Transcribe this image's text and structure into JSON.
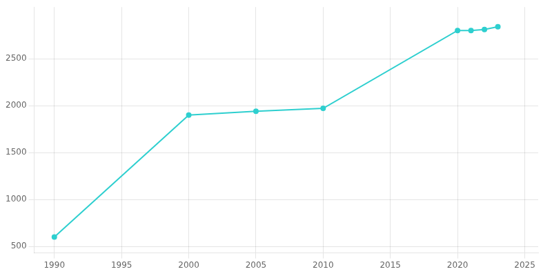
{
  "chart_data": {
    "type": "line",
    "x": [
      1990,
      2000,
      2005,
      2010,
      2020,
      2021,
      2022,
      2023
    ],
    "values": [
      600,
      1900,
      1940,
      1970,
      2800,
      2800,
      2810,
      2840
    ],
    "color": "#2ecfcf",
    "marker": "circle",
    "xlim": [
      1988.5,
      2026
    ],
    "xticks": [
      1990,
      1995,
      2000,
      2005,
      2010,
      2015,
      2020,
      2025
    ],
    "ylim": [
      430,
      3050
    ],
    "yticks": [
      500,
      1000,
      1500,
      2000,
      2500
    ],
    "grid": true
  }
}
